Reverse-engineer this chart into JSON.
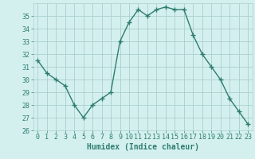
{
  "x": [
    0,
    1,
    2,
    3,
    4,
    5,
    6,
    7,
    8,
    9,
    10,
    11,
    12,
    13,
    14,
    15,
    16,
    17,
    18,
    19,
    20,
    21,
    22,
    23
  ],
  "y": [
    31.5,
    30.5,
    30.0,
    29.5,
    28.0,
    27.0,
    28.0,
    28.5,
    29.0,
    33.0,
    34.5,
    35.5,
    35.0,
    35.5,
    35.7,
    35.5,
    35.5,
    33.5,
    32.0,
    31.0,
    30.0,
    28.5,
    27.5,
    26.5
  ],
  "line_color": "#2e7d6e",
  "marker": "+",
  "marker_size": 4,
  "bg_color": "#d4f0ee",
  "grid_color": "#aacfcc",
  "xlabel": "Humidex (Indice chaleur)",
  "ylim": [
    26,
    36
  ],
  "xlim": [
    -0.5,
    23.5
  ],
  "yticks": [
    26,
    27,
    28,
    29,
    30,
    31,
    32,
    33,
    34,
    35
  ],
  "xticks": [
    0,
    1,
    2,
    3,
    4,
    5,
    6,
    7,
    8,
    9,
    10,
    11,
    12,
    13,
    14,
    15,
    16,
    17,
    18,
    19,
    20,
    21,
    22,
    23
  ],
  "title_color": "#2e7d6e",
  "xlabel_fontsize": 7,
  "tick_fontsize": 6,
  "line_width": 1.0,
  "marker_color": "#2e7d6e"
}
